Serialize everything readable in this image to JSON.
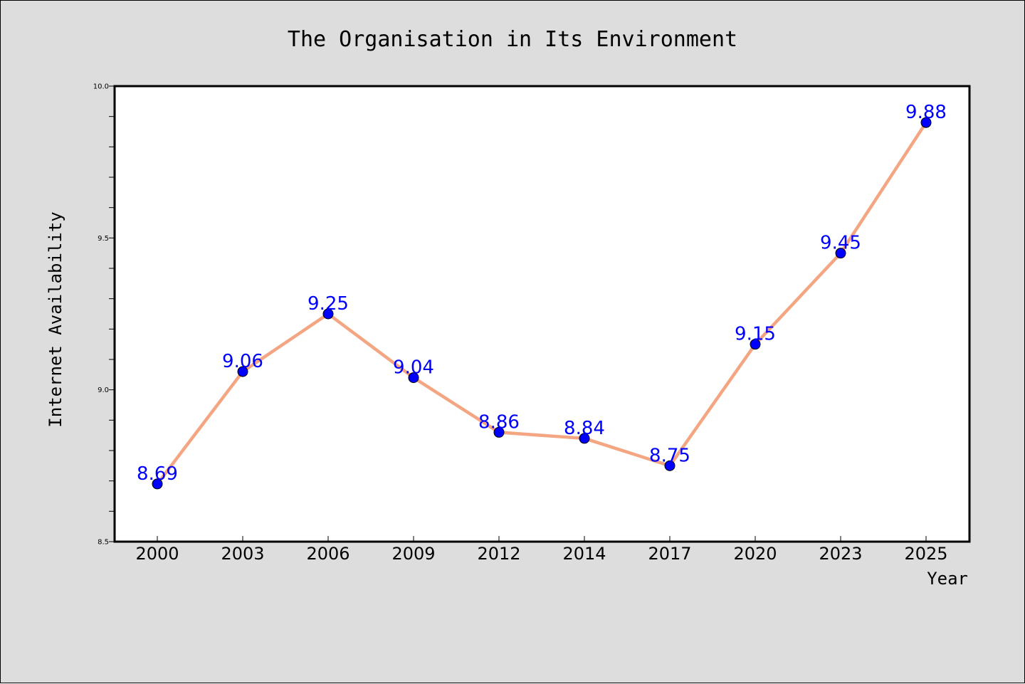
{
  "chart_data": {
    "type": "line",
    "title": "The Organisation in Its Environment",
    "xlabel": "Year",
    "ylabel": "Internet Availability",
    "categories": [
      "2000",
      "2003",
      "2006",
      "2009",
      "2012",
      "2014",
      "2017",
      "2020",
      "2023",
      "2025"
    ],
    "series": [
      {
        "values": [
          8.69,
          9.06,
          9.25,
          9.04,
          8.86,
          8.84,
          8.75,
          9.15,
          9.45,
          9.88
        ]
      }
    ],
    "data_labels": [
      "8.69",
      "9.06",
      "9.25",
      "9.04",
      "8.86",
      "8.84",
      "8.75",
      "9.15",
      "9.45",
      "9.88"
    ],
    "ylim": [
      8.5,
      10.0
    ],
    "yticks": [
      "8.5",
      "9.0",
      "9.5",
      "10.0"
    ],
    "yticks_minor_step": 0.1,
    "grid": false,
    "legend": "none",
    "colors": {
      "background": "#dddddd",
      "plot_background": "#ffffff",
      "line": "#f4a582",
      "marker": "#0000ff",
      "label": "#0000ff"
    }
  }
}
